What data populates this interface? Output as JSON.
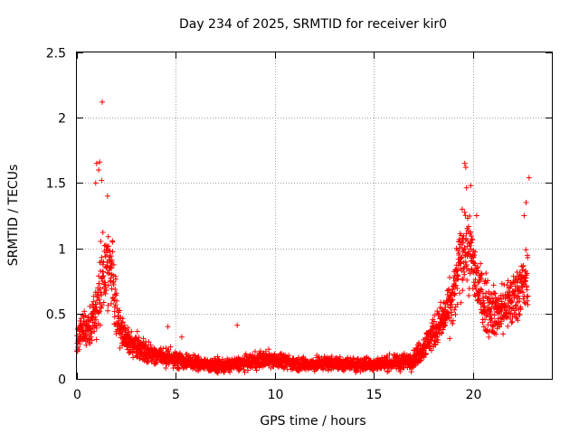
{
  "chart_data": {
    "type": "scatter",
    "title": "Day 234 of 2025, SRMTID for receiver kir0",
    "xlabel": "GPS time / hours",
    "ylabel": "SRMTID / TECUs",
    "xlim": [
      0,
      24
    ],
    "ylim": [
      0,
      2.5
    ],
    "xticks": [
      0,
      5,
      10,
      15,
      20
    ],
    "yticks": [
      0,
      0.5,
      1,
      1.5,
      2,
      2.5
    ],
    "xtick_labels": [
      "0",
      "5",
      "10",
      "15",
      "20"
    ],
    "ytick_labels": [
      "0",
      "0.5",
      "1",
      "1.5",
      "2",
      "2.5"
    ],
    "grid": true,
    "marker": "+",
    "marker_color": "#ff0000",
    "series": [
      {
        "name": "kir0",
        "profile_hours": [
          0,
          0.3,
          0.7,
          1.0,
          1.2,
          1.5,
          1.8,
          2.0,
          2.3,
          2.6,
          3.0,
          3.5,
          4.0,
          4.5,
          5.0,
          5.5,
          6.0,
          6.5,
          7.0,
          7.5,
          8.0,
          8.5,
          9.0,
          9.5,
          10.0,
          10.5,
          11.0,
          11.5,
          12.0,
          12.5,
          13.0,
          13.5,
          14.0,
          14.5,
          15.0,
          15.5,
          16.0,
          16.5,
          17.0,
          17.3,
          17.7,
          18.0,
          18.5,
          19.0,
          19.3,
          19.6,
          19.9,
          20.2,
          20.5,
          20.8,
          21.2,
          21.6,
          22.0,
          22.4,
          22.8
        ],
        "profile_median": [
          0.3,
          0.38,
          0.42,
          0.5,
          0.75,
          0.9,
          0.8,
          0.5,
          0.35,
          0.3,
          0.25,
          0.2,
          0.18,
          0.16,
          0.15,
          0.13,
          0.12,
          0.11,
          0.1,
          0.1,
          0.11,
          0.12,
          0.14,
          0.15,
          0.15,
          0.13,
          0.12,
          0.11,
          0.11,
          0.12,
          0.12,
          0.11,
          0.11,
          0.11,
          0.11,
          0.12,
          0.12,
          0.13,
          0.15,
          0.2,
          0.28,
          0.35,
          0.45,
          0.6,
          0.85,
          1.05,
          0.95,
          0.75,
          0.6,
          0.55,
          0.5,
          0.55,
          0.6,
          0.7,
          0.75
        ],
        "profile_spread": [
          0.1,
          0.12,
          0.15,
          0.2,
          0.3,
          0.3,
          0.28,
          0.2,
          0.12,
          0.1,
          0.09,
          0.08,
          0.07,
          0.06,
          0.06,
          0.05,
          0.05,
          0.05,
          0.05,
          0.05,
          0.05,
          0.05,
          0.06,
          0.06,
          0.06,
          0.05,
          0.05,
          0.05,
          0.05,
          0.05,
          0.05,
          0.05,
          0.05,
          0.05,
          0.05,
          0.05,
          0.05,
          0.06,
          0.06,
          0.08,
          0.1,
          0.12,
          0.15,
          0.2,
          0.28,
          0.3,
          0.28,
          0.22,
          0.2,
          0.2,
          0.18,
          0.2,
          0.2,
          0.22,
          0.22
        ],
        "notable_points": [
          {
            "x": 1.28,
            "y": 2.12
          },
          {
            "x": 1.0,
            "y": 1.65
          },
          {
            "x": 1.15,
            "y": 1.66
          },
          {
            "x": 1.1,
            "y": 1.6
          },
          {
            "x": 0.95,
            "y": 1.5
          },
          {
            "x": 1.25,
            "y": 1.52
          },
          {
            "x": 1.55,
            "y": 1.4
          },
          {
            "x": 19.6,
            "y": 1.65
          },
          {
            "x": 19.65,
            "y": 1.62
          },
          {
            "x": 19.9,
            "y": 1.48
          },
          {
            "x": 20.2,
            "y": 1.25
          },
          {
            "x": 22.85,
            "y": 1.54
          },
          {
            "x": 22.7,
            "y": 1.35
          },
          {
            "x": 22.6,
            "y": 1.25
          },
          {
            "x": 8.1,
            "y": 0.41
          },
          {
            "x": 5.3,
            "y": 0.32
          },
          {
            "x": 4.6,
            "y": 0.4
          }
        ],
        "sample_step_hours": 0.0083,
        "points_per_step": 1
      }
    ]
  }
}
